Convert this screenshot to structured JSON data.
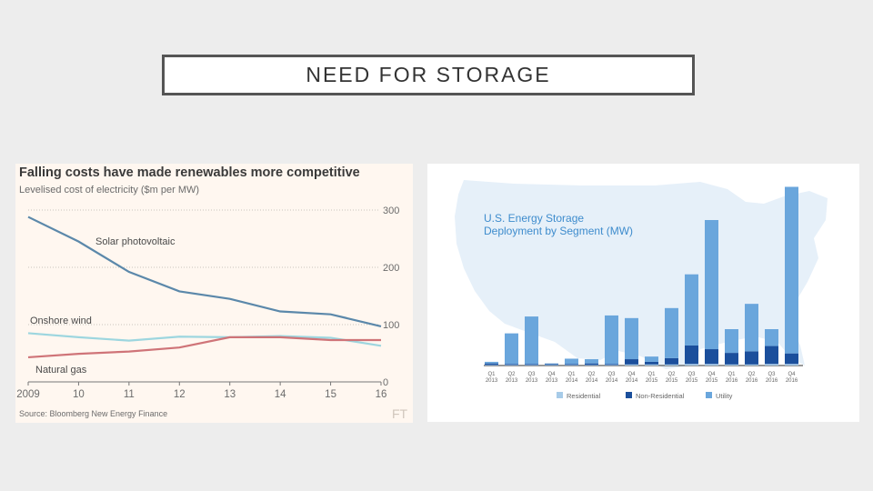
{
  "slide": {
    "title": "NEED FOR STORAGE"
  },
  "chart_data": [
    {
      "type": "line",
      "title": "Falling costs have made renewables more competitive",
      "subtitle": "Levelised cost of electricity ($m per MW)",
      "x": [
        "2009",
        "10",
        "11",
        "12",
        "13",
        "14",
        "15",
        "16"
      ],
      "ylim": [
        0,
        300
      ],
      "yticks": [
        "300",
        "200",
        "100",
        "0"
      ],
      "series": [
        {
          "name": "Solar photovoltaic",
          "color": "#5b88aa",
          "values": [
            288,
            245,
            192,
            158,
            145,
            123,
            118,
            97
          ]
        },
        {
          "name": "Onshore wind",
          "color": "#9dd6df",
          "values": [
            85,
            78,
            72,
            79,
            78,
            80,
            77,
            63
          ]
        },
        {
          "name": "Natural gas",
          "color": "#cf7478",
          "values": [
            43,
            49,
            53,
            60,
            78,
            78,
            73,
            73
          ]
        }
      ],
      "source": "Source: Bloomberg New Energy Finance",
      "logo": "FT"
    },
    {
      "type": "bar",
      "title": "U.S. Energy Storage\nDeployment by Segment (MW)",
      "title_lines": [
        "U.S. Energy Storage",
        "Deployment by Segment (MW)"
      ],
      "categories": [
        [
          "Q1",
          "2013"
        ],
        [
          "Q2",
          "2013"
        ],
        [
          "Q3",
          "2013"
        ],
        [
          "Q4",
          "2013"
        ],
        [
          "Q1",
          "2014"
        ],
        [
          "Q2",
          "2014"
        ],
        [
          "Q3",
          "2014"
        ],
        [
          "Q4",
          "2014"
        ],
        [
          "Q1",
          "2015"
        ],
        [
          "Q2",
          "2015"
        ],
        [
          "Q3",
          "2015"
        ],
        [
          "Q4",
          "2015"
        ],
        [
          "Q1",
          "2016"
        ],
        [
          "Q2",
          "2016"
        ],
        [
          "Q3",
          "2016"
        ],
        [
          "Q4",
          "2016"
        ]
      ],
      "ylim": [
        0,
        345
      ],
      "series": [
        {
          "name": "Residential",
          "color": "#a7cbe8",
          "values": [
            1,
            1,
            1,
            1,
            1,
            1,
            1,
            2,
            2,
            2,
            3,
            3,
            2,
            2,
            3,
            3
          ]
        },
        {
          "name": "Non-Residential",
          "color": "#1b4f9c",
          "values": [
            3,
            2,
            2,
            2,
            2,
            3,
            2,
            10,
            5,
            12,
            35,
            28,
            22,
            25,
            34,
            20
          ]
        },
        {
          "name": "Utility",
          "color": "#6aa6dc",
          "values": [
            3,
            58,
            90,
            1,
            10,
            8,
            92,
            78,
            10,
            95,
            135,
            245,
            45,
            90,
            32,
            316
          ]
        }
      ],
      "legend": "bottom"
    }
  ]
}
